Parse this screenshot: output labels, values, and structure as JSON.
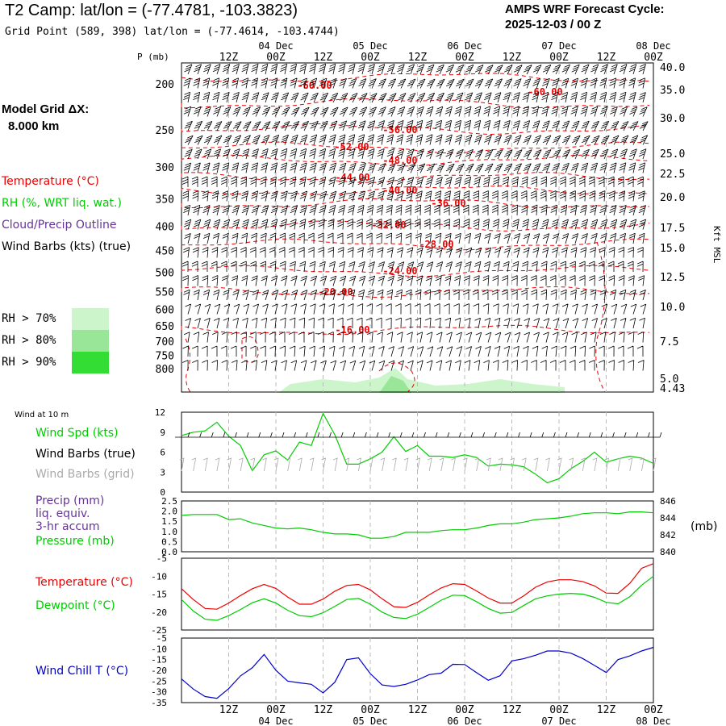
{
  "header": {
    "title": "T2 Camp:  lat/lon = (-77.4781, -103.3823)",
    "grid_point": "Grid Point (589, 398) lat/lon = (-77.4614, -103.4744)",
    "forecast_label": "AMPS WRF Forecast Cycle:",
    "forecast_cycle": "2025-12-03 / 00  Z"
  },
  "model": {
    "grid_label": "Model Grid ΔX:",
    "grid_value": "8.000 km"
  },
  "legend": {
    "temperature": "Temperature (°C)",
    "rh": "RH (%, WRT liq. wat.)",
    "cloud": "Cloud/Precip Outline",
    "wind_barbs": "Wind Barbs (kts) (true)",
    "rh70": "RH > 70%",
    "rh80": "RH > 80%",
    "rh90": "RH > 90%",
    "colors": {
      "rh70": "#ccf5cc",
      "rh80": "#99e699",
      "rh90": "#33dd33"
    }
  },
  "time_axis": {
    "hour_labels": [
      "12Z",
      "00Z",
      "12Z",
      "00Z",
      "12Z",
      "00Z",
      "12Z",
      "00Z",
      "12Z",
      "00Z"
    ],
    "date_labels": [
      "04 Dec",
      "05 Dec",
      "06 Dec",
      "07 Dec",
      "08 Dec"
    ]
  },
  "colors": {
    "temperature": "#ee0000",
    "dewpoint": "#00cc00",
    "wind_speed": "#00cc00",
    "pressure": "#00cc00",
    "wind_chill": "#0000cc",
    "barbs_true": "#000000",
    "barbs_grid": "#aaaaaa",
    "precip_label": "#663399"
  },
  "chart_data": [
    {
      "type": "contour",
      "title": "Vertical cross-section",
      "ylabel": "P (mb)",
      "y2label": "Kft MSL",
      "pressure_ticks": [
        200,
        250,
        300,
        350,
        400,
        450,
        500,
        550,
        600,
        650,
        700,
        750,
        800
      ],
      "height_ticks": [
        "40.0",
        "35.0",
        "30.0",
        "25.0",
        "22.5",
        "20.0",
        "17.5",
        "15.0",
        "12.5",
        "10.0",
        "7.5",
        "5.0",
        "4.43"
      ],
      "temperature_contour_labels": [
        "-60.00",
        "-60.00",
        "-56.00",
        "-52.00",
        "-48.00",
        "-44.00",
        "-40.00",
        "-36.00",
        "-32.00",
        "-28.00",
        "-24.00",
        "-20.00",
        "-16.00"
      ]
    },
    {
      "type": "line",
      "title": "Wind at 10 m",
      "label_speed": "Wind Spd (kts)",
      "label_barbs_true": "Wind Barbs (true)",
      "label_barbs_grid": "Wind Barbs (grid)",
      "ylim": [
        0,
        12
      ],
      "yticks": [
        0,
        3,
        6,
        9,
        12
      ],
      "x": [
        0,
        3,
        6,
        9,
        12,
        15,
        18,
        21,
        24,
        27,
        30,
        33,
        36,
        39,
        42,
        45,
        48,
        51,
        54,
        57,
        60,
        63,
        66,
        69,
        72,
        75,
        78,
        81,
        84,
        87,
        90,
        93,
        96,
        99,
        102,
        105,
        108,
        111,
        114,
        117,
        120
      ],
      "values": [
        8.5,
        9,
        9.2,
        10.5,
        8.4,
        7,
        3.2,
        5.6,
        6.2,
        4.8,
        7.5,
        7,
        11.8,
        8.6,
        4.2,
        4.2,
        5,
        6,
        8.3,
        6.1,
        7,
        5.4,
        5.4,
        5.2,
        5.6,
        5.2,
        3.9,
        4.2,
        4.1,
        3.8,
        2.7,
        1.4,
        2,
        3.5,
        4.6,
        6,
        4.5,
        5,
        5.4,
        5.1,
        4.3
      ]
    },
    {
      "type": "line",
      "label_precip": "Precip (mm)",
      "label_liq": "liq. equiv.",
      "label_accum": "3-hr accum",
      "label_pressure": "Pressure (mb)",
      "unit": "(mb)",
      "precip_ticks": [
        "0.0",
        "0.5",
        "1.0",
        "1.5",
        "2.0",
        "2.5"
      ],
      "pressure_ticks": [
        840,
        842,
        844,
        846
      ],
      "precip_values": [],
      "x": [
        0,
        3,
        6,
        9,
        12,
        15,
        18,
        21,
        24,
        27,
        30,
        33,
        36,
        39,
        42,
        45,
        48,
        51,
        54,
        57,
        60,
        63,
        66,
        69,
        72,
        75,
        78,
        81,
        84,
        87,
        90,
        93,
        96,
        99,
        102,
        105,
        108,
        111,
        114,
        117,
        120
      ],
      "values": [
        844.3,
        844.4,
        844.4,
        844.4,
        843.8,
        843.9,
        843.4,
        843.1,
        842.8,
        842.7,
        842.8,
        842.6,
        842.3,
        842.1,
        842.1,
        842,
        841.6,
        841.6,
        841.8,
        842.3,
        842.3,
        842.3,
        842.5,
        842.6,
        842.6,
        842.8,
        843.1,
        843.3,
        843.3,
        843.5,
        843.8,
        843.9,
        844,
        844.2,
        844.5,
        844.6,
        844.6,
        844.5,
        844.7,
        844.7,
        844.6
      ]
    },
    {
      "type": "line",
      "label_temperature": "Temperature (°C)",
      "label_dewpoint": "Dewpoint (°C)",
      "ylim": [
        -25,
        -5
      ],
      "yticks": [
        -25,
        -20,
        -15,
        -10,
        -5
      ],
      "x": [
        0,
        3,
        6,
        9,
        12,
        15,
        18,
        21,
        24,
        27,
        30,
        33,
        36,
        39,
        42,
        45,
        48,
        51,
        54,
        57,
        60,
        63,
        66,
        69,
        72,
        75,
        78,
        81,
        84,
        87,
        90,
        93,
        96,
        99,
        102,
        105,
        108,
        111,
        114,
        117,
        120
      ],
      "series": [
        {
          "name": "Temperature",
          "values": [
            -13.5,
            -16.5,
            -19,
            -19.2,
            -17.5,
            -15.4,
            -13.5,
            -12.3,
            -13.4,
            -15.8,
            -17.8,
            -17.8,
            -16.4,
            -14.2,
            -12.6,
            -12.3,
            -13.8,
            -16.3,
            -18.5,
            -18.7,
            -17.3,
            -15.2,
            -13.3,
            -12.1,
            -12.3,
            -14.1,
            -16.1,
            -17.5,
            -17.5,
            -15.5,
            -13.1,
            -11.6,
            -11,
            -11,
            -11.5,
            -12.7,
            -14.7,
            -14.8,
            -12,
            -7.8,
            -6.5
          ]
        },
        {
          "name": "Dewpoint",
          "values": [
            -16.5,
            -19.7,
            -22,
            -22.3,
            -21,
            -19.3,
            -17.4,
            -16.3,
            -17.5,
            -19.5,
            -21,
            -21.3,
            -20.2,
            -18.4,
            -16.5,
            -16.2,
            -17.8,
            -20,
            -21.5,
            -21.8,
            -20.6,
            -18.7,
            -16.7,
            -15.3,
            -15.4,
            -17.1,
            -19,
            -20.3,
            -20.1,
            -18.2,
            -16.3,
            -15.5,
            -15,
            -14.8,
            -15,
            -15.9,
            -17.3,
            -17.7,
            -15.7,
            -12.5,
            -10
          ]
        }
      ]
    },
    {
      "type": "line",
      "label": "Wind Chill T (°C)",
      "ylim": [
        -35,
        -5
      ],
      "yticks": [
        -35,
        -30,
        -25,
        -20,
        -15,
        -10,
        -5
      ],
      "x": [
        0,
        3,
        6,
        9,
        12,
        15,
        18,
        21,
        24,
        27,
        30,
        33,
        36,
        39,
        42,
        45,
        48,
        51,
        54,
        57,
        60,
        63,
        66,
        69,
        72,
        75,
        78,
        81,
        84,
        87,
        90,
        93,
        96,
        99,
        102,
        105,
        108,
        111,
        114,
        117,
        120
      ],
      "values": [
        -24,
        -28.7,
        -32.2,
        -33,
        -28.5,
        -22.6,
        -18.8,
        -12.6,
        -20,
        -25,
        -25.8,
        -26.5,
        -30.5,
        -25.5,
        -15,
        -14.2,
        -21.5,
        -26.8,
        -27.5,
        -26.5,
        -24.5,
        -22,
        -21.3,
        -17.2,
        -17.3,
        -21,
        -24.6,
        -22.5,
        -15.6,
        -14.6,
        -13,
        -11,
        -11,
        -12,
        -14.5,
        -17.7,
        -21,
        -15,
        -13.3,
        -11,
        -9.3
      ]
    }
  ]
}
